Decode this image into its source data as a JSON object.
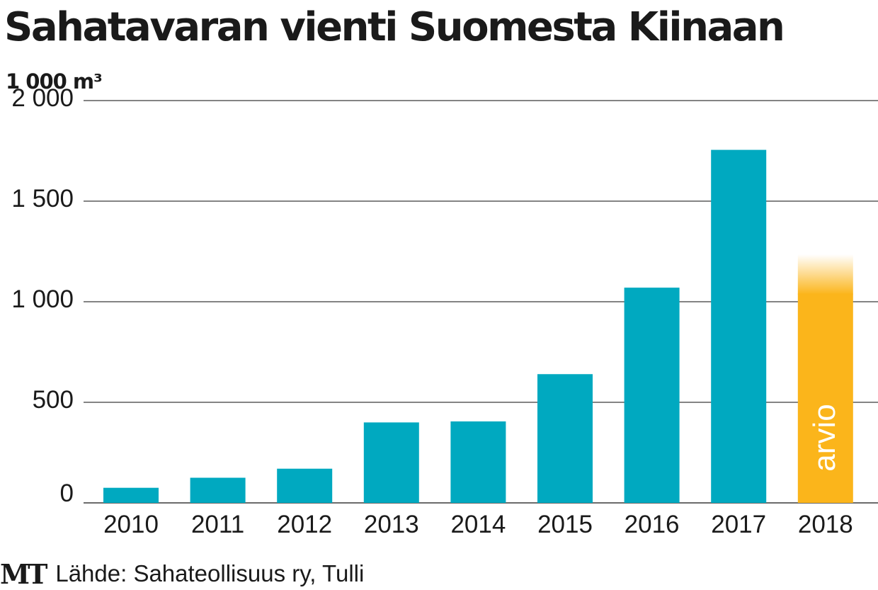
{
  "logo": "MT",
  "footer": {
    "source": "Lähde: Sahateollisuus ry, Tulli"
  },
  "colors": {
    "bar": "#00a9c0",
    "estimate": "#fbb51b",
    "grid": "#3a3a3a",
    "text": "#1a1a1a"
  },
  "chart_data": {
    "type": "bar",
    "title": "Sahatavaran vienti Suomesta Kiinaan",
    "ylabel": "1 000 m³",
    "categories": [
      "2010",
      "2011",
      "2012",
      "2013",
      "2014",
      "2015",
      "2016",
      "2017",
      "2018"
    ],
    "values": [
      75,
      125,
      170,
      400,
      405,
      640,
      1070,
      1755,
      1200
    ],
    "yticks": [
      "0",
      "500",
      "1 000",
      "1 500",
      "2 000"
    ],
    "ytick_values": [
      0,
      500,
      1000,
      1500,
      2000
    ],
    "ylim": [
      0,
      2000
    ],
    "grid": true,
    "estimate_index": 8,
    "estimate_label": "arvio"
  }
}
